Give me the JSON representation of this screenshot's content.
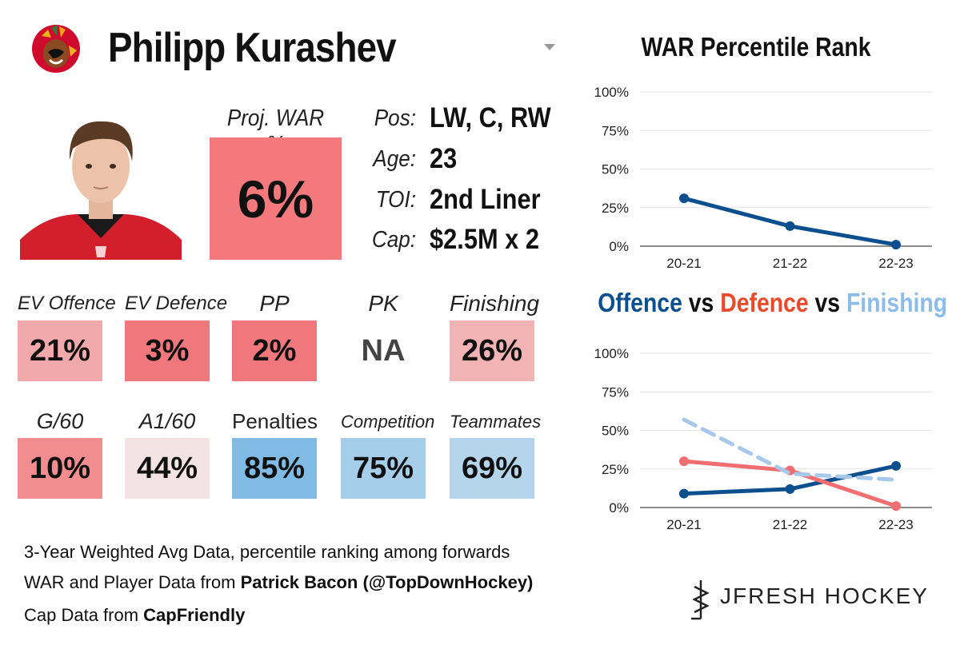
{
  "player": {
    "name": "Philipp Kurashev",
    "proj_war_label": "Proj. WAR %",
    "proj_war_value": "6%",
    "info": [
      {
        "key": "Pos:",
        "value": "LW, C, RW"
      },
      {
        "key": "Age:",
        "value": "23"
      },
      {
        "key": "TOI:",
        "value": "2nd Liner"
      },
      {
        "key": "Cap:",
        "value": "$2.5M x 2"
      }
    ]
  },
  "metrics": [
    {
      "label": "EV Offence",
      "value": "21%",
      "color": "#f2a9ab"
    },
    {
      "label": "EV Defence",
      "value": "3%",
      "color": "#f0777b"
    },
    {
      "label": "PP",
      "value": "2%",
      "color": "#f0777b"
    },
    {
      "label": "PK",
      "value": "NA",
      "color": "#ffffff"
    },
    {
      "label": "Finishing",
      "value": "26%",
      "color": "#f2b3b4"
    },
    {
      "label": "G/60",
      "value": "10%",
      "color": "#f28d8f"
    },
    {
      "label": "A1/60",
      "value": "44%",
      "color": "#f3e3e4"
    },
    {
      "label": "Penalties",
      "value": "85%",
      "color": "#7fbbe4"
    },
    {
      "label": "Competition",
      "value": "75%",
      "color": "#a6cdea"
    },
    {
      "label": "Teammates",
      "value": "69%",
      "color": "#b5d5ed"
    }
  ],
  "colors": {
    "proj_box": "#f4797c",
    "offence": "#0b4f8e",
    "defence": "#f26d6f",
    "finishing": "#a6c8ea",
    "defence_title": "#e84a2a",
    "finishing_title": "#8cbde9",
    "grid": "#e6e6e6"
  },
  "footer": {
    "line1": "3-Year Weighted Avg Data, percentile ranking among forwards",
    "line2_prefix": "WAR and Player Data from ",
    "line2_bold": "Patrick Bacon (@TopDownHockey)",
    "line3_prefix": "Cap Data from ",
    "line3_bold": "CapFriendly"
  },
  "brand": "JFRESH HOCKEY",
  "chart_titles": {
    "war": "WAR Percentile Rank",
    "cmp_offence": "Offence",
    "cmp_vs1": " vs ",
    "cmp_defence": "Defence",
    "cmp_vs2": " vs ",
    "cmp_finishing": "Finishing"
  },
  "chart_data": [
    {
      "type": "line",
      "title": "WAR Percentile Rank",
      "categories": [
        "20-21",
        "21-22",
        "22-23"
      ],
      "series": [
        {
          "values": [
            31,
            13,
            1
          ],
          "color": "#0b4f8e",
          "dash": false
        }
      ],
      "ylim": [
        0,
        100
      ],
      "yticks": [
        "0%",
        "25%",
        "50%",
        "75%",
        "100%"
      ],
      "grid": true
    },
    {
      "type": "line",
      "title": "Offence vs Defence vs Finishing",
      "categories": [
        "20-21",
        "21-22",
        "22-23"
      ],
      "series": [
        {
          "name": "Offence",
          "values": [
            9,
            12,
            27
          ],
          "color": "#0b4f8e",
          "dash": false
        },
        {
          "name": "Defence",
          "values": [
            30,
            24,
            1
          ],
          "color": "#f26d6f",
          "dash": false
        },
        {
          "name": "Finishing",
          "values": [
            57,
            22,
            18
          ],
          "color": "#a6c8ea",
          "dash": true
        }
      ],
      "ylim": [
        0,
        100
      ],
      "yticks": [
        "0%",
        "25%",
        "50%",
        "75%",
        "100%"
      ],
      "grid": true
    }
  ]
}
